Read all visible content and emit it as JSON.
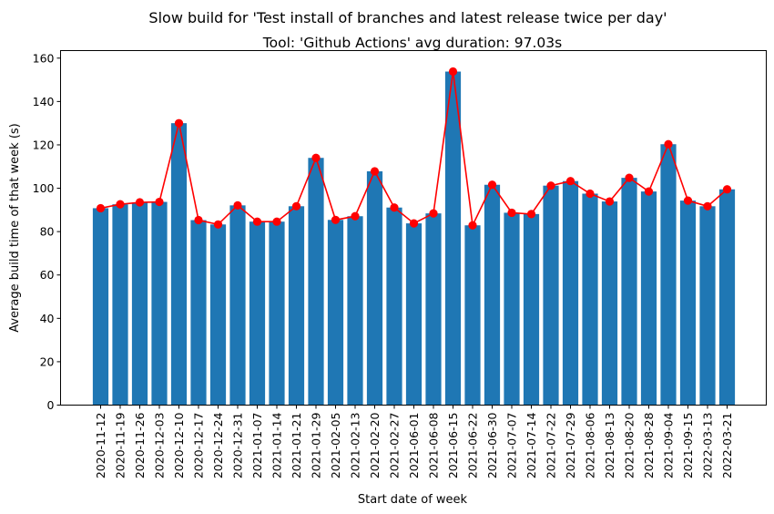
{
  "chart_data": {
    "type": "bar",
    "suptitle": "Slow build for 'Test install of branches and latest release twice per day'",
    "title": "Tool: 'Github Actions' avg duration: 97.03s",
    "xlabel": "Start date of week",
    "ylabel": "Average build time of that week (s)",
    "ylim": [
      0,
      162
    ],
    "yticks": [
      0,
      20,
      40,
      60,
      80,
      100,
      120,
      140,
      160
    ],
    "grid": false,
    "categories": [
      "2020-11-12",
      "2020-11-19",
      "2020-11-26",
      "2020-12-03",
      "2020-12-10",
      "2020-12-17",
      "2020-12-24",
      "2020-12-31",
      "2021-01-07",
      "2021-01-14",
      "2021-01-21",
      "2021-01-29",
      "2021-02-05",
      "2021-02-13",
      "2021-02-20",
      "2021-02-27",
      "2021-06-01",
      "2021-06-08",
      "2021-06-15",
      "2021-06-22",
      "2021-06-30",
      "2021-07-07",
      "2021-07-14",
      "2021-07-22",
      "2021-07-29",
      "2021-08-06",
      "2021-08-13",
      "2021-08-20",
      "2021-08-28",
      "2021-09-04",
      "2021-09-15",
      "2022-03-13",
      "2022-03-21"
    ],
    "series": [
      {
        "kind": "bar",
        "color": "#1f77b4",
        "values": [
          90.8,
          92.6,
          93.5,
          93.7,
          130.0,
          85.3,
          83.3,
          92.1,
          84.6,
          84.6,
          91.7,
          114.0,
          85.4,
          87.1,
          107.8,
          91.1,
          83.8,
          88.4,
          153.8,
          82.9,
          101.6,
          88.7,
          88.1,
          101.2,
          103.3,
          97.5,
          93.9,
          104.8,
          98.5,
          120.3,
          94.3,
          91.7,
          99.5
        ]
      },
      {
        "kind": "line",
        "color": "#ff0000",
        "marker": "circle",
        "values": [
          90.8,
          92.6,
          93.5,
          93.7,
          130.0,
          85.3,
          83.3,
          92.1,
          84.6,
          84.6,
          91.7,
          114.0,
          85.4,
          87.1,
          107.8,
          91.1,
          83.8,
          88.4,
          153.8,
          82.9,
          101.6,
          88.7,
          88.1,
          101.2,
          103.3,
          97.5,
          93.9,
          104.8,
          98.5,
          120.3,
          94.3,
          91.7,
          99.5
        ]
      }
    ]
  }
}
